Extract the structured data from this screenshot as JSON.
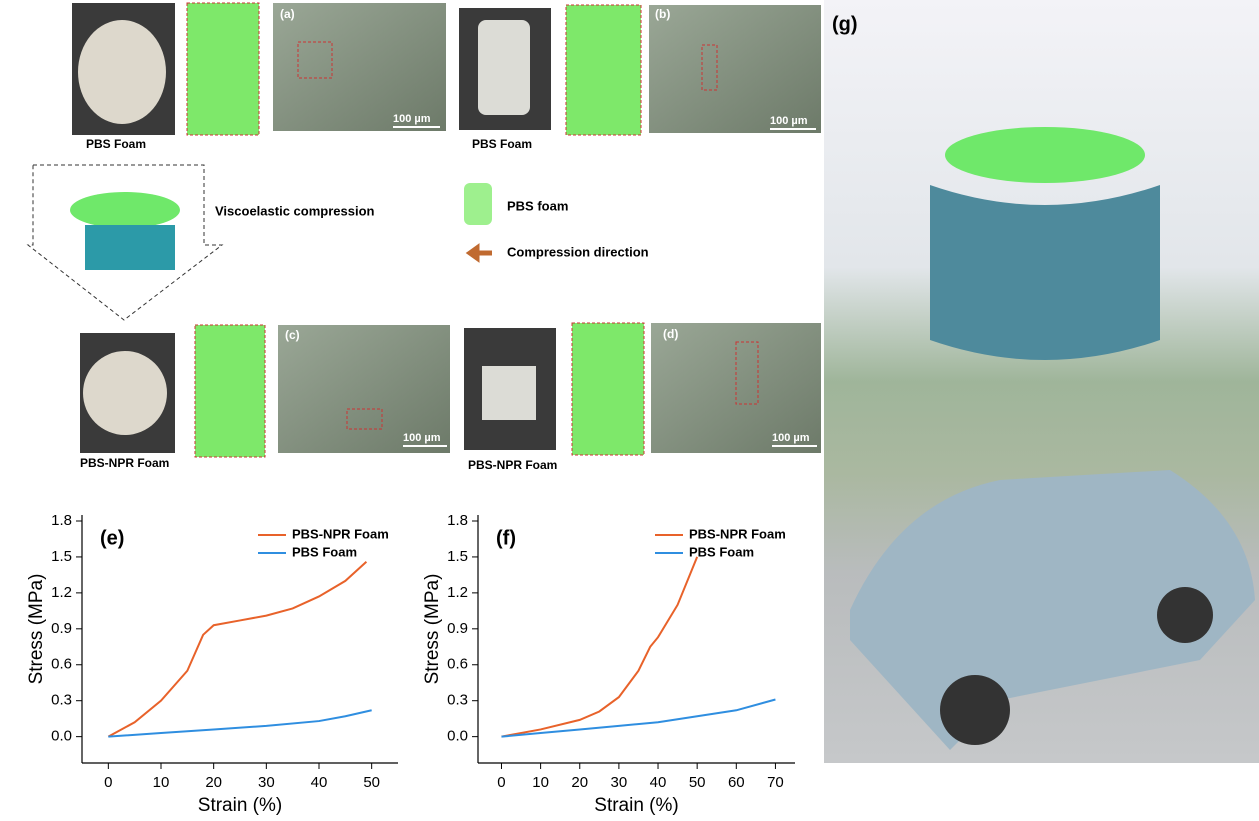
{
  "panels": {
    "a": {
      "label": "(a)",
      "scale": "100 µm",
      "caption": "PBS Foam"
    },
    "b": {
      "label": "(b)",
      "scale": "100 µm",
      "caption": "PBS Foam"
    },
    "c": {
      "label": "(c)",
      "scale": "100 µm",
      "caption": "PBS-NPR Foam"
    },
    "d": {
      "label": "(d)",
      "scale": "100 µm",
      "caption": "PBS-NPR Foam"
    },
    "middle": {
      "process": "Viscoelastic compression",
      "legend_foam": "PBS foam",
      "legend_arrow": "Compression direction"
    },
    "g": {
      "label": "(g)"
    }
  },
  "chart_data": [
    {
      "type": "line",
      "label": "(e)",
      "x_label": "Strain (%)",
      "y_label": "Stress (MPa)",
      "xlim": [
        -5,
        55
      ],
      "ylim": [
        -0.22,
        1.85
      ],
      "xticks": [
        0,
        10,
        20,
        30,
        40,
        50
      ],
      "yticks": [
        {
          "value": 0,
          "label": "0.0"
        },
        0.3,
        0.6,
        0.9,
        1.2,
        1.5,
        1.8
      ],
      "series": [
        {
          "name": "PBS-NPR Foam",
          "color": "#e8622a",
          "x": [
            0,
            5,
            10,
            15,
            18,
            20,
            25,
            30,
            35,
            40,
            45,
            49
          ],
          "values": [
            0,
            0.12,
            0.3,
            0.55,
            0.85,
            0.93,
            0.97,
            1.01,
            1.07,
            1.17,
            1.3,
            1.46
          ]
        },
        {
          "name": "PBS Foam",
          "color": "#2f8ee0",
          "x": [
            0,
            10,
            20,
            30,
            40,
            45,
            50
          ],
          "values": [
            0,
            0.03,
            0.06,
            0.09,
            0.13,
            0.17,
            0.22
          ]
        }
      ]
    },
    {
      "type": "line",
      "label": "(f)",
      "x_label": "Strain (%)",
      "y_label": "Stress (MPa)",
      "xlim": [
        -6,
        75
      ],
      "ylim": [
        -0.22,
        1.85
      ],
      "xticks": [
        0,
        10,
        20,
        30,
        40,
        50,
        60,
        70
      ],
      "yticks": [
        {
          "value": 0,
          "label": "0.0"
        },
        0.3,
        0.6,
        0.9,
        1.2,
        1.5,
        1.8
      ],
      "series": [
        {
          "name": "PBS-NPR Foam",
          "color": "#e8622a",
          "x": [
            0,
            10,
            20,
            25,
            30,
            35,
            38,
            40,
            45,
            50
          ],
          "values": [
            0,
            0.06,
            0.14,
            0.21,
            0.33,
            0.55,
            0.75,
            0.83,
            1.1,
            1.5
          ]
        },
        {
          "name": "PBS Foam",
          "color": "#2f8ee0",
          "x": [
            0,
            10,
            20,
            30,
            40,
            50,
            60,
            70
          ],
          "values": [
            0,
            0.03,
            0.06,
            0.09,
            0.12,
            0.17,
            0.22,
            0.31
          ]
        }
      ]
    }
  ]
}
